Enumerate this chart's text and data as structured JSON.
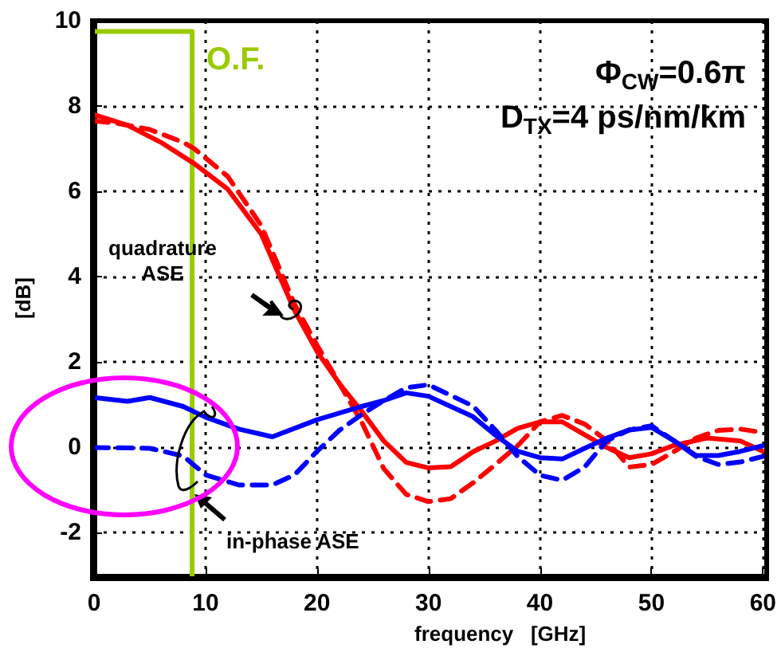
{
  "chart_data": {
    "type": "line",
    "xlabel": "frequency   [GHz]",
    "ylabel": "[dB]",
    "xlim": [
      0,
      60
    ],
    "xticks": [
      0,
      10,
      20,
      30,
      40,
      50,
      60
    ],
    "ylim": [
      -3,
      10
    ],
    "yticks": [
      -2,
      0,
      2,
      4,
      6,
      8,
      10
    ],
    "grid": true,
    "annotations": [
      "Φ$_{CW}$=0.6π",
      "D$_{TX}$=4 ps/nm/km",
      "quadrature ASE",
      "in-phase ASE"
    ],
    "series": [
      {
        "color": "#ff0000",
        "line_style": "solid",
        "x": [
          0,
          3,
          6,
          9,
          12,
          15,
          18,
          20,
          22,
          24,
          26,
          28,
          30,
          32,
          34,
          36,
          38,
          40,
          42,
          44,
          46,
          48,
          50,
          52,
          55,
          58,
          60
        ],
        "values": [
          7.8,
          7.55,
          7.15,
          6.65,
          6.05,
          5.0,
          3.2,
          2.25,
          1.5,
          0.85,
          0.15,
          -0.35,
          -0.48,
          -0.45,
          -0.1,
          0.15,
          0.45,
          0.6,
          0.6,
          0.3,
          0.0,
          -0.24,
          -0.15,
          0.05,
          0.22,
          0.15,
          -0.09
        ]
      },
      {
        "color": "#ff0000",
        "line_style": "dashed",
        "x": [
          0,
          2,
          5,
          8,
          9,
          12,
          15,
          18,
          20,
          22,
          24,
          26,
          28,
          30,
          32,
          34,
          36,
          38,
          40,
          42,
          44,
          46,
          48,
          50,
          52,
          54,
          56,
          58,
          60
        ],
        "values": [
          7.65,
          7.6,
          7.45,
          7.15,
          7.0,
          6.35,
          5.2,
          3.35,
          2.4,
          1.5,
          0.6,
          -0.5,
          -1.1,
          -1.27,
          -1.2,
          -0.83,
          -0.4,
          0.04,
          0.6,
          0.75,
          0.55,
          0.16,
          -0.46,
          -0.4,
          -0.1,
          0.22,
          0.4,
          0.43,
          0.35
        ]
      },
      {
        "color": "#0000ff",
        "line_style": "solid",
        "x": [
          0,
          3,
          5,
          8,
          10,
          13,
          16,
          20,
          24,
          26,
          28,
          30,
          34,
          36,
          38,
          40,
          42,
          44,
          46,
          48,
          50,
          52,
          54,
          56,
          58,
          60
        ],
        "values": [
          1.17,
          1.08,
          1.17,
          0.96,
          0.71,
          0.43,
          0.25,
          0.65,
          0.96,
          1.1,
          1.28,
          1.2,
          0.72,
          0.29,
          -0.09,
          -0.24,
          -0.27,
          -0.02,
          0.22,
          0.41,
          0.47,
          0.16,
          -0.19,
          -0.19,
          -0.09,
          0.04
        ]
      },
      {
        "color": "#0000ff",
        "line_style": "dashed",
        "x": [
          0,
          5,
          8,
          10,
          13,
          16,
          18,
          20,
          22,
          24,
          26,
          28,
          30,
          34,
          36,
          38,
          40,
          42,
          44,
          46,
          48,
          50,
          52,
          54,
          56,
          58,
          60
        ],
        "values": [
          0,
          -0.02,
          -0.2,
          -0.64,
          -0.88,
          -0.88,
          -0.64,
          -0.09,
          0.4,
          0.77,
          1.1,
          1.4,
          1.47,
          0.97,
          0.41,
          -0.21,
          -0.65,
          -0.77,
          -0.46,
          0.16,
          0.41,
          0.51,
          0.16,
          -0.21,
          -0.4,
          -0.34,
          -0.21
        ]
      },
      {
        "name": "O.F.",
        "color": "#99cc00",
        "line_style": "solid",
        "x": [
          0,
          8.8,
          8.8
        ],
        "values": [
          9.75,
          9.75,
          -3
        ]
      }
    ]
  }
}
